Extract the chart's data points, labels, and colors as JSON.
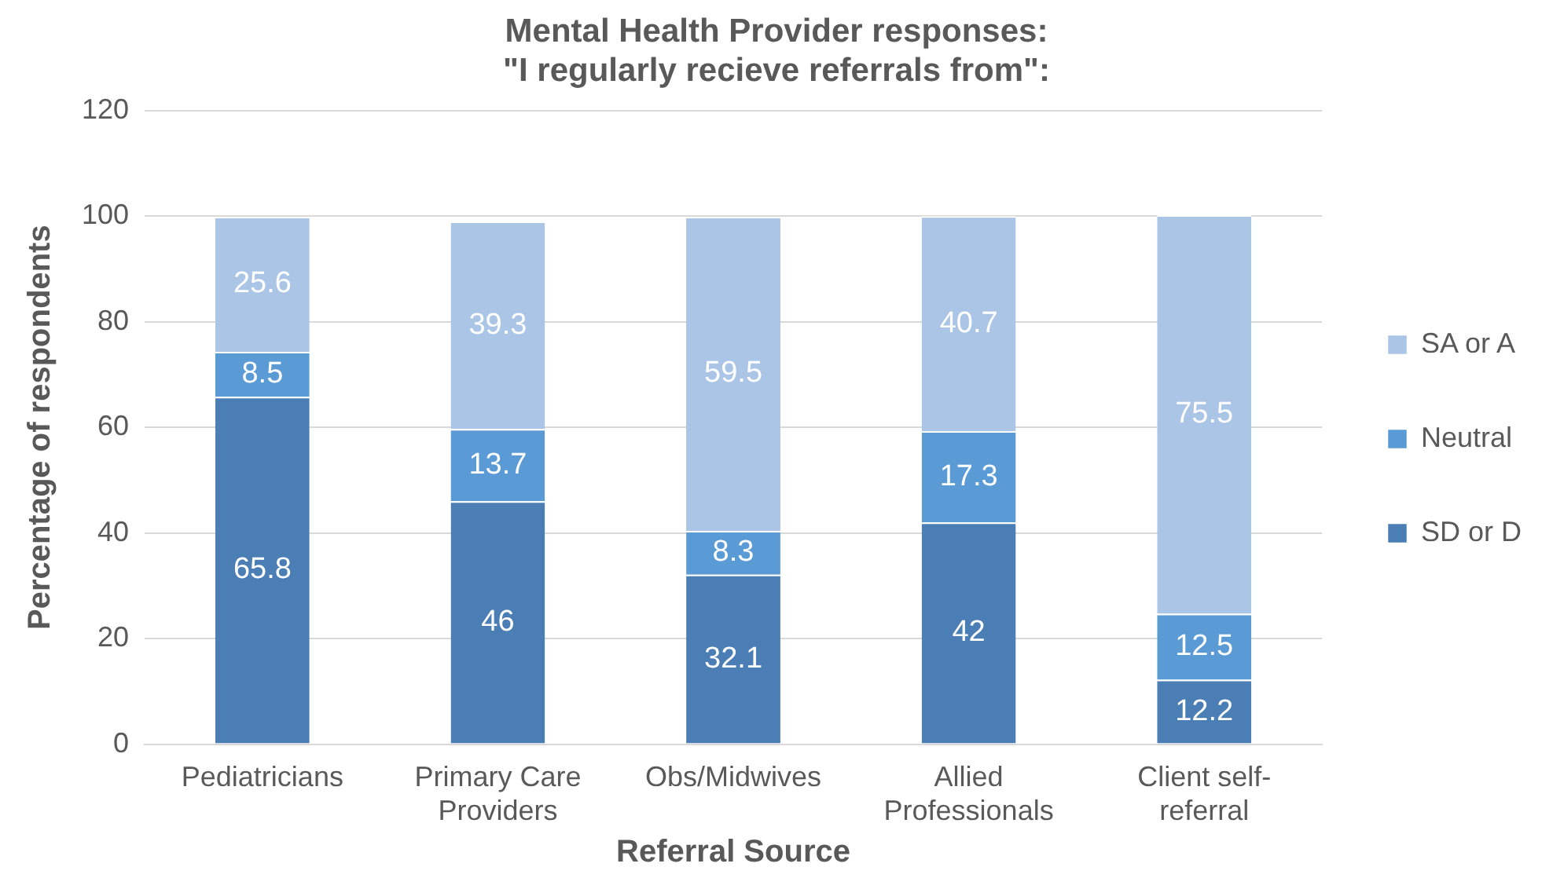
{
  "chart_data": {
    "type": "bar",
    "stacked": true,
    "title": "Mental Health Provider responses:\n\"I regularly recieve referrals from\":",
    "xlabel": "Referral Source",
    "ylabel": "Percentage of respondents",
    "categories": [
      "Pediatricians",
      "Primary Care Providers",
      "Obs/Midwives",
      "Allied Professionals",
      "Client self-referral"
    ],
    "series": [
      {
        "name": "SD or D",
        "color": "#4a7eb4",
        "values": [
          65.8,
          46,
          32.1,
          42,
          12.2
        ]
      },
      {
        "name": "Neutral",
        "color": "#5b9bd5",
        "values": [
          8.5,
          13.7,
          8.3,
          17.3,
          12.5
        ]
      },
      {
        "name": "SA or A",
        "color": "#aac5e6",
        "values": [
          25.6,
          39.3,
          59.5,
          40.7,
          75.5
        ]
      }
    ],
    "ylim": [
      0,
      120
    ],
    "yticks": [
      0,
      20,
      40,
      60,
      80,
      100,
      120
    ],
    "grid": "y",
    "legend": "right",
    "data_labels": true
  }
}
